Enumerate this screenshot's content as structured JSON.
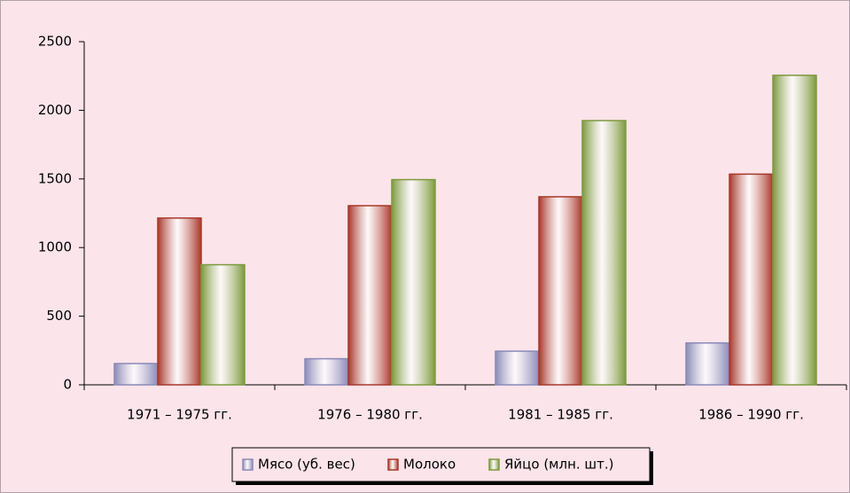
{
  "chart_data": {
    "type": "bar",
    "categories": [
      "1971 – 1975 гг.",
      "1976 – 1980 гг.",
      "1981 – 1985 гг.",
      "1986 – 1990 гг."
    ],
    "series": [
      {
        "name": "Мясо (уб. вес)",
        "color": "#8a8ab8",
        "values": [
          155,
          190,
          245,
          305
        ]
      },
      {
        "name": "Молоко",
        "color": "#a8382a",
        "values": [
          1215,
          1305,
          1370,
          1535
        ]
      },
      {
        "name": "Яйцо (млн. шт.)",
        "color": "#7d9a3e",
        "values": [
          875,
          1495,
          1925,
          2255
        ]
      }
    ],
    "ylim": [
      0,
      2500
    ],
    "yticks": [
      0,
      500,
      1000,
      1500,
      2000,
      2500
    ],
    "legend": "bottom"
  }
}
